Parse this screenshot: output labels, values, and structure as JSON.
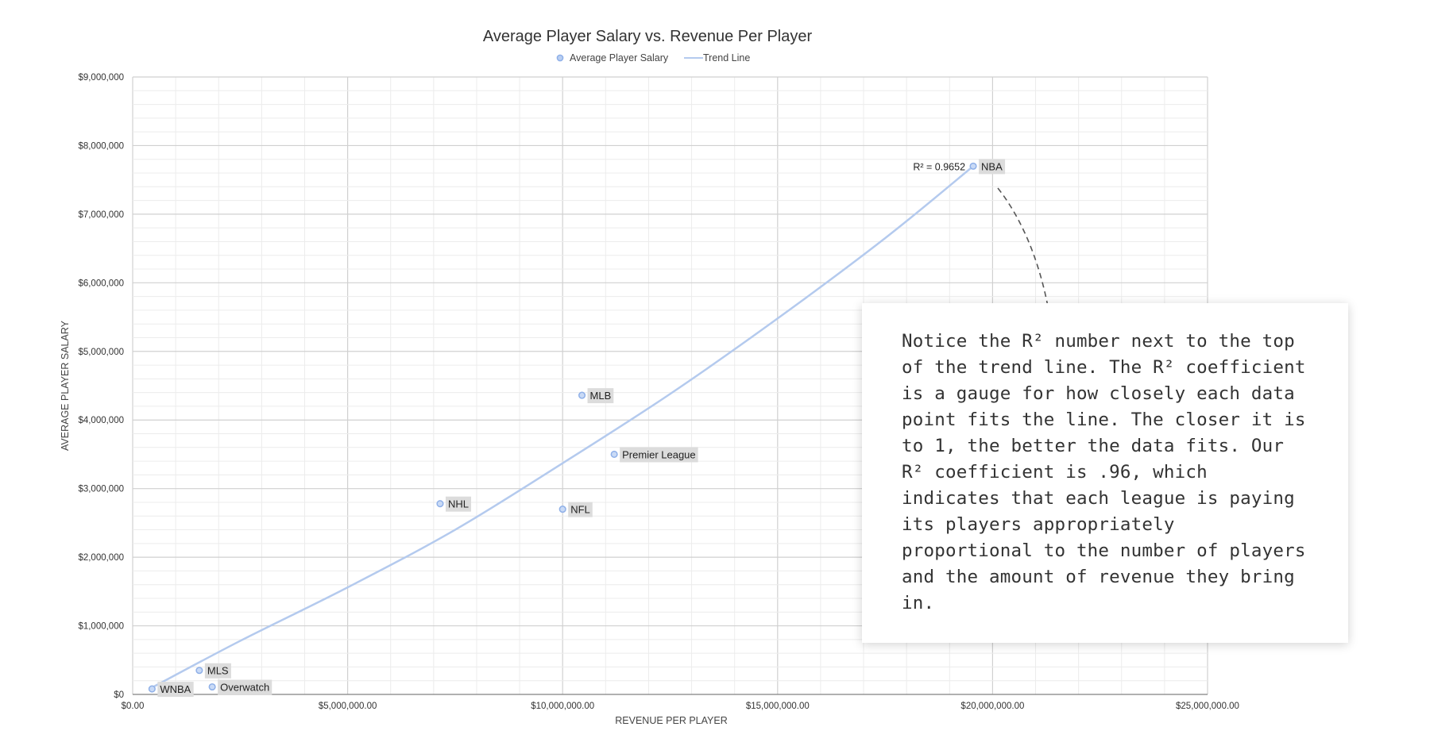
{
  "chart_data": {
    "type": "scatter",
    "title": "Average Player Salary vs. Revenue Per Player",
    "xlabel": "REVENUE PER PLAYER",
    "ylabel": "AVERAGE PLAYER SALARY",
    "xlim": [
      0,
      25000000
    ],
    "ylim": [
      0,
      9000000
    ],
    "x_ticks": [
      "$0.00",
      "$5,000,000.00",
      "$10,000,000.00",
      "$15,000,000.00",
      "$20,000,000.00",
      "$25,000,000.00"
    ],
    "y_ticks": [
      "$0",
      "$1,000,000",
      "$2,000,000",
      "$3,000,000",
      "$4,000,000",
      "$5,000,000",
      "$6,000,000",
      "$7,000,000",
      "$8,000,000",
      "$9,000,000"
    ],
    "grid": true,
    "legend": [
      "Average Player Salary",
      "Trend Line"
    ],
    "legend_position": "top",
    "colors": {
      "points": "#8fb0e8",
      "trend": "#b4caee"
    },
    "points": [
      {
        "name": "WNBA",
        "x": 450000,
        "y": 80000
      },
      {
        "name": "MLS",
        "x": 1550000,
        "y": 350000
      },
      {
        "name": "Overwatch",
        "x": 1850000,
        "y": 110000
      },
      {
        "name": "NHL",
        "x": 7150000,
        "y": 2780000
      },
      {
        "name": "NFL",
        "x": 10000000,
        "y": 2700000
      },
      {
        "name": "MLB",
        "x": 10450000,
        "y": 4360000
      },
      {
        "name": "Premier League",
        "x": 11200000,
        "y": 3500000
      },
      {
        "name": "NBA",
        "x": 19550000,
        "y": 7700000
      }
    ],
    "trend": {
      "type": "polynomial",
      "annotation": "R² = 0.9652",
      "x": [
        450000,
        2500000,
        5000000,
        7500000,
        10000000,
        12500000,
        15000000,
        17500000,
        19550000
      ],
      "y": [
        100000,
        780000,
        1560000,
        2400000,
        3370000,
        4380000,
        5480000,
        6650000,
        7700000
      ]
    }
  },
  "callout": {
    "text": "Notice the R² number next to the top of the trend line. The R² coefficient is a gauge for how closely each data point fits the line. The closer it is to 1, the better the data fits. Our R² coefficient is .96, which indicates that each league is paying its players appropriately proportional to the number of players and the amount of revenue they bring in."
  }
}
